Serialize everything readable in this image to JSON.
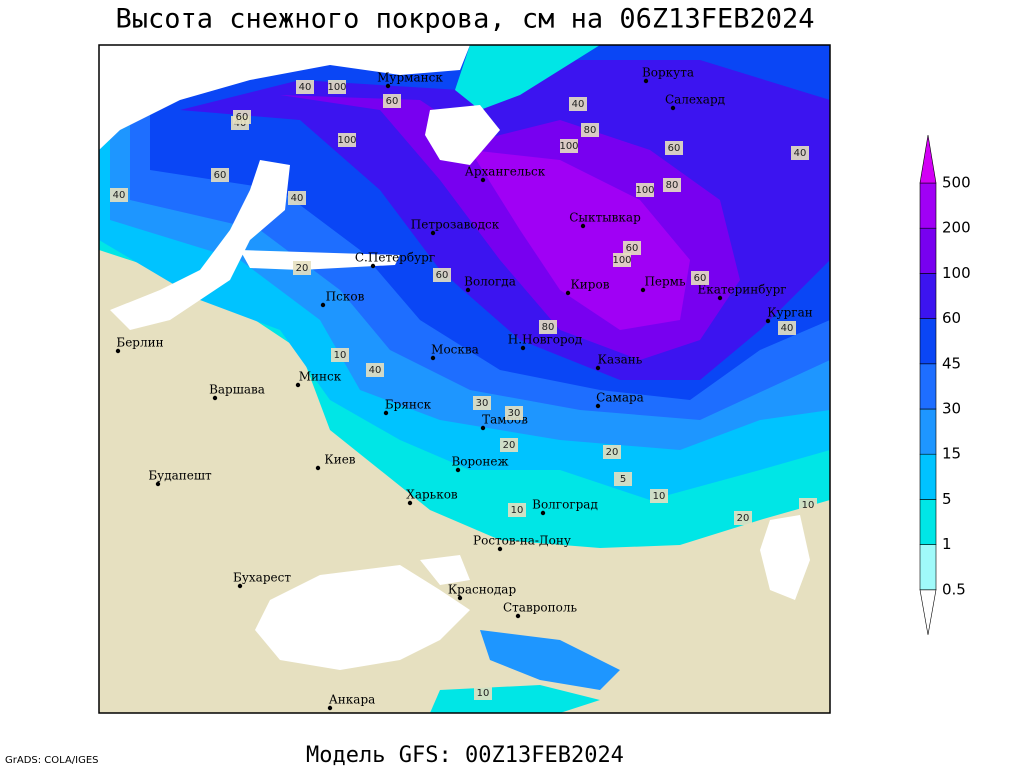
{
  "header": {
    "title": "Высота снежного покрова, см на 06Z13FEB2024"
  },
  "footer": {
    "model": "Модель GFS: 00Z13FEB2024",
    "credit": "GrADS: COLA/IGES"
  },
  "cities": [
    "Мурманск",
    "Воркута",
    "Салехард",
    "Архангельск",
    "Сыктывкар",
    "Петрозаводск",
    "С.Петербург",
    "Вологда",
    "Киров",
    "Пермь",
    "Екатеринбург",
    "Курган",
    "Псков",
    "Берлин",
    "Н.Новгород",
    "Москва",
    "Казань",
    "Варшава",
    "Минск",
    "Самара",
    "Брянск",
    "Тамбов",
    "Воронеж",
    "Киев",
    "Будапешт",
    "Харьков",
    "Волгоград",
    "Ростов-на-Дону",
    "Бухарест",
    "Краснодар",
    "Ставрополь",
    "Анкара"
  ],
  "contour_labels": [
    "40",
    "100",
    "60",
    "40",
    "80",
    "100",
    "60",
    "40",
    "100",
    "80",
    "100",
    "60",
    "40",
    "20",
    "60",
    "60",
    "100",
    "40",
    "60",
    "80",
    "40",
    "30",
    "30",
    "20",
    "20",
    "10",
    "10",
    "20",
    "5",
    "10",
    "10",
    "10",
    "40",
    "60",
    "40"
  ],
  "legend": {
    "levels": [
      0.5,
      1,
      5,
      15,
      30,
      45,
      60,
      100,
      200,
      500
    ],
    "colors": [
      "#ffffff",
      "#a0fafa",
      "#00e6e6",
      "#00c3ff",
      "#1e96ff",
      "#1e6eff",
      "#0a46f5",
      "#3c14f0",
      "#7800f0",
      "#a000f5",
      "#d200f5"
    ]
  }
}
